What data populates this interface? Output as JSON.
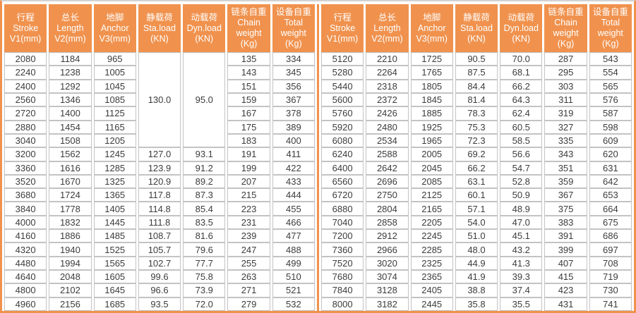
{
  "page": {
    "accent_orange": "#f0924e",
    "grid_gray": "#c3c3c3",
    "text_color": "#3c3c3c",
    "background": "#ffffff"
  },
  "header_order": [
    "stroke",
    "length",
    "anchor",
    "sta_load",
    "dyn_load",
    "chain_weight",
    "total_weight"
  ],
  "header_labels": {
    "stroke": "行程\nStroke\nV1(mm)",
    "length": "总长\nLength\nV2(mm)",
    "anchor": "地脚\nAnchor\nV3(mm)",
    "sta_load": "静载荷\nSta.load\n(KN)",
    "dyn_load": "动载荷\nDyn.load\n(KN)",
    "chain_weight": "链条自重\nChain\nweight\n(Kg)",
    "total_weight": "设备自重\nTotal\nweight\n(Kg)"
  },
  "tables": [
    {
      "merged_cells": [
        {
          "row": 0,
          "col": 3,
          "rowspan": 7,
          "value": "130.0"
        },
        {
          "row": 0,
          "col": 4,
          "rowspan": 7,
          "value": "95.0"
        }
      ],
      "rows": [
        [
          "2080",
          "1184",
          "965",
          null,
          null,
          "135",
          "334"
        ],
        [
          "2240",
          "1238",
          "1005",
          null,
          null,
          "143",
          "345"
        ],
        [
          "2400",
          "1292",
          "1045",
          null,
          null,
          "151",
          "356"
        ],
        [
          "2560",
          "1346",
          "1085",
          null,
          null,
          "159",
          "367"
        ],
        [
          "2720",
          "1400",
          "1125",
          null,
          null,
          "167",
          "378"
        ],
        [
          "2880",
          "1454",
          "1165",
          null,
          null,
          "175",
          "389"
        ],
        [
          "3040",
          "1508",
          "1205",
          null,
          null,
          "183",
          "400"
        ],
        [
          "3200",
          "1562",
          "1245",
          "127.0",
          "93.1",
          "191",
          "411"
        ],
        [
          "3360",
          "1616",
          "1285",
          "123.9",
          "91.2",
          "199",
          "422"
        ],
        [
          "3520",
          "1670",
          "1325",
          "120.9",
          "89.2",
          "207",
          "433"
        ],
        [
          "3680",
          "1724",
          "1365",
          "117.8",
          "87.3",
          "215",
          "444"
        ],
        [
          "3840",
          "1778",
          "1405",
          "114.8",
          "85.4",
          "223",
          "455"
        ],
        [
          "4000",
          "1832",
          "1445",
          "111.8",
          "83.5",
          "231",
          "466"
        ],
        [
          "4160",
          "1886",
          "1485",
          "108.7",
          "81.6",
          "239",
          "477"
        ],
        [
          "4320",
          "1940",
          "1525",
          "105.7",
          "79.6",
          "247",
          "488"
        ],
        [
          "4480",
          "1994",
          "1565",
          "102.7",
          "77.7",
          "255",
          "499"
        ],
        [
          "4640",
          "2048",
          "1605",
          "99.6",
          "75.8",
          "263",
          "510"
        ],
        [
          "4800",
          "2102",
          "1645",
          "96.6",
          "73.9",
          "271",
          "521"
        ],
        [
          "4960",
          "2156",
          "1685",
          "93.5",
          "72.0",
          "279",
          "532"
        ]
      ]
    },
    {
      "merged_cells": [],
      "rows": [
        [
          "5120",
          "2210",
          "1725",
          "90.5",
          "70.0",
          "287",
          "543"
        ],
        [
          "5280",
          "2264",
          "1765",
          "87.5",
          "68.1",
          "295",
          "554"
        ],
        [
          "5440",
          "2318",
          "1805",
          "84.4",
          "66.2",
          "303",
          "565"
        ],
        [
          "5600",
          "2372",
          "1845",
          "81.4",
          "64.3",
          "311",
          "576"
        ],
        [
          "5760",
          "2426",
          "1885",
          "78.3",
          "62.4",
          "319",
          "587"
        ],
        [
          "5920",
          "2480",
          "1925",
          "75.3",
          "60.5",
          "327",
          "598"
        ],
        [
          "6080",
          "2534",
          "1965",
          "72.3",
          "58.5",
          "335",
          "609"
        ],
        [
          "6240",
          "2588",
          "2005",
          "69.2",
          "56.6",
          "343",
          "620"
        ],
        [
          "6400",
          "2642",
          "2045",
          "66.2",
          "54.7",
          "351",
          "631"
        ],
        [
          "6560",
          "2696",
          "2085",
          "63.1",
          "52.8",
          "359",
          "642"
        ],
        [
          "6720",
          "2750",
          "2125",
          "60.1",
          "50.9",
          "367",
          "653"
        ],
        [
          "6880",
          "2804",
          "2165",
          "57.1",
          "48.9",
          "375",
          "664"
        ],
        [
          "7040",
          "2858",
          "2205",
          "54.0",
          "47.0",
          "383",
          "675"
        ],
        [
          "7200",
          "2912",
          "2245",
          "51.0",
          "45.1",
          "391",
          "686"
        ],
        [
          "7360",
          "2966",
          "2285",
          "48.0",
          "43.2",
          "399",
          "697"
        ],
        [
          "7520",
          "3020",
          "2325",
          "44.9",
          "41.3",
          "407",
          "708"
        ],
        [
          "7680",
          "3074",
          "2365",
          "41.9",
          "39.3",
          "415",
          "719"
        ],
        [
          "7840",
          "3128",
          "2405",
          "38.8",
          "37.4",
          "423",
          "730"
        ],
        [
          "8000",
          "3182",
          "2445",
          "35.8",
          "35.5",
          "431",
          "741"
        ]
      ]
    }
  ]
}
